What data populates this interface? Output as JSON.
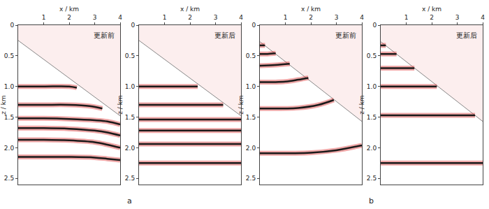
{
  "chart_data": [
    {
      "type": "line",
      "title": "更新前",
      "group": "a",
      "xlabel": "x / km",
      "ylabel": "z / km",
      "xlim": [
        0,
        4
      ],
      "xticks": [
        1,
        2,
        3,
        4
      ],
      "ylim": [
        0,
        2.6
      ],
      "yticks": [
        0,
        0.5,
        {
          "value": 1,
          "label": "1.0"
        },
        1.5,
        {
          "value": 2,
          "label": "2.0"
        },
        2.5
      ],
      "grid": false,
      "series": [
        {
          "type": "area",
          "color": "#888888",
          "x": [
            0,
            4
          ],
          "values": [
            0.25,
            1.48
          ]
        },
        {
          "color": "#1a1a1a",
          "x": [
            0,
            1,
            2,
            2.3
          ],
          "values": [
            1.0,
            1.0,
            1.0,
            1.02
          ]
        },
        {
          "color": "#1a1a1a",
          "x": [
            0,
            1,
            2,
            2.8,
            3.3
          ],
          "values": [
            1.3,
            1.3,
            1.3,
            1.32,
            1.36
          ]
        },
        {
          "color": "#1a1a1a",
          "x": [
            0,
            1,
            2,
            3,
            3.5,
            4
          ],
          "values": [
            1.52,
            1.52,
            1.53,
            1.55,
            1.57,
            1.62
          ]
        },
        {
          "color": "#1a1a1a",
          "x": [
            0,
            1,
            2,
            3,
            3.5,
            4
          ],
          "values": [
            1.68,
            1.68,
            1.69,
            1.72,
            1.75,
            1.8
          ]
        },
        {
          "color": "#1a1a1a",
          "x": [
            0,
            1,
            2,
            3,
            3.5,
            4
          ],
          "values": [
            1.87,
            1.87,
            1.88,
            1.91,
            1.95,
            2.0
          ]
        },
        {
          "color": "#1a1a1a",
          "x": [
            0,
            1,
            2,
            3,
            3.5,
            4
          ],
          "values": [
            2.15,
            2.15,
            2.15,
            2.16,
            2.18,
            2.2
          ]
        }
      ]
    },
    {
      "type": "line",
      "title": "更新后",
      "group": "a",
      "xlabel": "x / km",
      "ylabel": "z / km",
      "xlim": [
        0,
        4
      ],
      "xticks": [
        1,
        2,
        3,
        4
      ],
      "ylim": [
        0,
        2.6
      ],
      "yticks": [
        0,
        0.5,
        {
          "value": 1,
          "label": "1.0"
        },
        1.5,
        {
          "value": 2,
          "label": "2.0"
        },
        2.5
      ],
      "grid": false,
      "series": [
        {
          "type": "area",
          "color": "#888888",
          "x": [
            0,
            4
          ],
          "values": [
            0.25,
            1.48
          ]
        },
        {
          "color": "#1a1a1a",
          "x": [
            0,
            2.3
          ],
          "values": [
            1.0,
            1.0
          ]
        },
        {
          "color": "#1a1a1a",
          "x": [
            0,
            3.3
          ],
          "values": [
            1.3,
            1.3
          ]
        },
        {
          "color": "#1a1a1a",
          "x": [
            0,
            4
          ],
          "values": [
            1.54,
            1.54
          ]
        },
        {
          "color": "#1a1a1a",
          "x": [
            0,
            4
          ],
          "values": [
            1.72,
            1.72
          ]
        },
        {
          "color": "#1a1a1a",
          "x": [
            0,
            4
          ],
          "values": [
            1.94,
            1.94
          ]
        },
        {
          "color": "#1a1a1a",
          "x": [
            0,
            4
          ],
          "values": [
            2.25,
            2.25
          ]
        }
      ]
    },
    {
      "type": "line",
      "title": "更新前",
      "group": "b",
      "xlabel": "x / km",
      "ylabel": "z / km",
      "xlim": [
        0,
        4
      ],
      "xticks": [
        1,
        2,
        3,
        4
      ],
      "ylim": [
        0,
        2.6
      ],
      "yticks": [
        0,
        0.5,
        {
          "value": 1,
          "label": "1.0"
        },
        1.5,
        {
          "value": 2,
          "label": "2.0"
        },
        2.5
      ],
      "grid": false,
      "series": [
        {
          "type": "area",
          "color": "#888888",
          "x": [
            0,
            4
          ],
          "values": [
            0.27,
            1.57
          ]
        },
        {
          "color": "#1a1a1a",
          "x": [
            0,
            0.2
          ],
          "values": [
            0.33,
            0.33
          ]
        },
        {
          "color": "#1a1a1a",
          "x": [
            0,
            0.3,
            0.62
          ],
          "values": [
            0.47,
            0.47,
            0.46
          ]
        },
        {
          "color": "#1a1a1a",
          "x": [
            0,
            0.6,
            1.17
          ],
          "values": [
            0.66,
            0.65,
            0.63
          ]
        },
        {
          "color": "#1a1a1a",
          "x": [
            0,
            1,
            1.5,
            1.9
          ],
          "values": [
            0.93,
            0.92,
            0.89,
            0.86
          ]
        },
        {
          "color": "#1a1a1a",
          "x": [
            0,
            1.5,
            2.3,
            2.9
          ],
          "values": [
            1.36,
            1.35,
            1.3,
            1.22
          ]
        },
        {
          "color": "#1a1a1a",
          "x": [
            0,
            2,
            3,
            4
          ],
          "values": [
            2.09,
            2.08,
            2.04,
            1.96
          ]
        }
      ]
    },
    {
      "type": "line",
      "title": "更新后",
      "group": "b",
      "xlabel": "x / km",
      "ylabel": "z / km",
      "xlim": [
        0,
        4
      ],
      "xticks": [
        1,
        2,
        3,
        4
      ],
      "ylim": [
        0,
        2.6
      ],
      "yticks": [
        0,
        0.5,
        {
          "value": 1,
          "label": "1.0"
        },
        1.5,
        {
          "value": 2,
          "label": "2.0"
        },
        2.5
      ],
      "grid": false,
      "series": [
        {
          "type": "area",
          "color": "#888888",
          "x": [
            0,
            4
          ],
          "values": [
            0.27,
            1.57
          ]
        },
        {
          "color": "#1a1a1a",
          "x": [
            0,
            0.2
          ],
          "values": [
            0.33,
            0.33
          ]
        },
        {
          "color": "#1a1a1a",
          "x": [
            0,
            0.62
          ],
          "values": [
            0.47,
            0.47
          ]
        },
        {
          "color": "#1a1a1a",
          "x": [
            0,
            1.32
          ],
          "values": [
            0.7,
            0.7
          ]
        },
        {
          "color": "#1a1a1a",
          "x": [
            0,
            2.2
          ],
          "values": [
            1.0,
            1.0
          ]
        },
        {
          "color": "#1a1a1a",
          "x": [
            0,
            3.7
          ],
          "values": [
            1.47,
            1.47
          ]
        },
        {
          "color": "#1a1a1a",
          "x": [
            0,
            4
          ],
          "values": [
            2.25,
            2.25
          ]
        }
      ]
    }
  ]
}
